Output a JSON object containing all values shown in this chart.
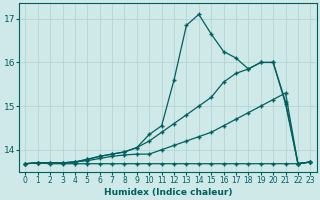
{
  "xlabel": "Humidex (Indice chaleur)",
  "background_color": "#cfe8e8",
  "grid_color": "#b0d0d0",
  "line_color": "#006060",
  "xlim": [
    -0.5,
    23.5
  ],
  "ylim": [
    13.5,
    17.35
  ],
  "yticks": [
    14,
    15,
    16,
    17
  ],
  "xticks": [
    0,
    1,
    2,
    3,
    4,
    5,
    6,
    7,
    8,
    9,
    10,
    11,
    12,
    13,
    14,
    15,
    16,
    17,
    18,
    19,
    20,
    21,
    22,
    23
  ],
  "curve1_x": [
    0,
    1,
    2,
    3,
    4,
    5,
    6,
    7,
    8,
    9,
    10,
    11,
    12,
    13,
    14,
    15,
    16,
    17,
    18,
    19,
    20,
    21,
    22,
    23
  ],
  "curve1_y": [
    13.68,
    13.7,
    13.68,
    13.68,
    13.68,
    13.68,
    13.68,
    13.68,
    13.68,
    13.68,
    13.68,
    13.68,
    13.68,
    13.68,
    13.68,
    13.68,
    13.68,
    13.68,
    13.68,
    13.68,
    13.68,
    13.68,
    13.68,
    13.72
  ],
  "curve2_x": [
    0,
    1,
    2,
    3,
    4,
    5,
    6,
    7,
    8,
    9,
    10,
    11,
    12,
    13,
    14,
    15,
    16,
    17,
    18,
    19,
    20,
    21,
    22,
    23
  ],
  "curve2_y": [
    13.68,
    13.7,
    13.7,
    13.7,
    13.72,
    13.75,
    13.8,
    13.85,
    13.88,
    13.9,
    13.9,
    14.0,
    14.1,
    14.2,
    14.3,
    14.4,
    14.55,
    14.7,
    14.85,
    15.0,
    15.15,
    15.3,
    13.68,
    13.72
  ],
  "curve3_x": [
    0,
    1,
    2,
    3,
    4,
    5,
    6,
    7,
    8,
    9,
    10,
    11,
    12,
    13,
    14,
    15,
    16,
    17,
    18,
    19,
    20,
    21,
    22,
    23
  ],
  "curve3_y": [
    13.68,
    13.7,
    13.7,
    13.7,
    13.72,
    13.78,
    13.85,
    13.9,
    13.95,
    14.05,
    14.2,
    14.4,
    14.6,
    14.8,
    15.0,
    15.2,
    15.55,
    15.75,
    15.85,
    16.0,
    16.0,
    15.1,
    13.68,
    13.72
  ],
  "curve4_x": [
    0,
    1,
    2,
    3,
    4,
    5,
    6,
    7,
    8,
    9,
    10,
    11,
    12,
    13,
    14,
    15,
    16,
    17,
    18,
    19,
    20,
    21,
    22,
    23
  ],
  "curve4_y": [
    13.68,
    13.7,
    13.7,
    13.7,
    13.72,
    13.78,
    13.85,
    13.9,
    13.95,
    14.05,
    14.35,
    14.55,
    15.6,
    16.85,
    17.1,
    16.65,
    16.25,
    16.1,
    15.85,
    16.0,
    16.0,
    15.05,
    13.68,
    13.72
  ]
}
